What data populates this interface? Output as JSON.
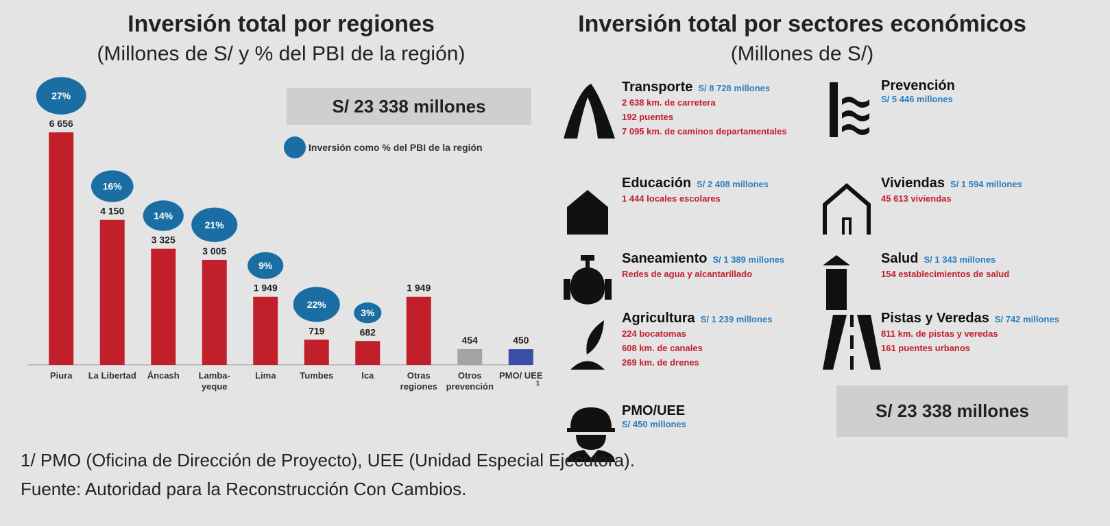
{
  "chart_data": {
    "type": "bar",
    "title": "Inversión total por regiones",
    "subtitle": "(Millones de S/ y % del PBI de la región)",
    "total_label": "S/ 23 338 millones",
    "categories": [
      "Piura",
      "La Libertad",
      "Áncash",
      "Lamba-yeque",
      "Lima",
      "Tumbes",
      "Ica",
      "Otras regiones",
      "Otros prevención",
      "PMO/ UEE"
    ],
    "values": [
      6656,
      4150,
      3325,
      3005,
      1949,
      719,
      682,
      1949,
      454,
      450
    ],
    "value_labels": [
      "6 656",
      "4 150",
      "3 325",
      "3 005",
      "1 949",
      "719",
      "682",
      "1 949",
      "454",
      "450"
    ],
    "colors": [
      "#c1202b",
      "#c1202b",
      "#c1202b",
      "#c1202b",
      "#c1202b",
      "#c1202b",
      "#c1202b",
      "#c1202b",
      "#a3a3a3",
      "#3a4ea6"
    ],
    "pct_values": [
      27,
      16,
      14,
      21,
      9,
      22,
      3,
      null,
      null,
      null
    ],
    "pct_labels": [
      "27%",
      "16%",
      "14%",
      "21%",
      "9%",
      "22%",
      "3%",
      null,
      null,
      null
    ],
    "pct_color": "#1a6ea3",
    "legend": "Inversión como % del PBI de la región",
    "footnote_marker": "1"
  },
  "sectors_panel": {
    "title": "Inversión total por sectores económicos",
    "subtitle": "(Millones de S/)",
    "total_label": "S/ 23 338 millones",
    "sectors": [
      {
        "name": "Transporte",
        "amount": "S/ 8 728 millones",
        "details": [
          "2 638 km. de carretera",
          "192 puentes",
          "7 095 km. de caminos departamentales"
        ]
      },
      {
        "name": "Prevención",
        "amount": "S/ 5 446 millones",
        "details": []
      },
      {
        "name": "Educación",
        "amount": "S/ 2 408 millones",
        "details": [
          "1 444 locales escolares"
        ]
      },
      {
        "name": "Viviendas",
        "amount": "S/ 1 594 millones",
        "details": [
          "45 613 viviendas"
        ]
      },
      {
        "name": "Saneamiento",
        "amount": "S/ 1 389 millones",
        "details": [
          "Redes de agua y alcantarillado"
        ]
      },
      {
        "name": "Salud",
        "amount": "S/ 1 343 millones",
        "details": [
          "154 establecimientos de salud"
        ]
      },
      {
        "name": "Agricultura",
        "amount": "S/ 1 239 millones",
        "details": [
          "224 bocatomas",
          "608 km. de canales",
          "269 km. de drenes"
        ]
      },
      {
        "name": "Pistas y Veredas",
        "amount": "S/ 742 millones",
        "details": [
          "811 km. de pistas y veredas",
          "161 puentes urbanos"
        ]
      },
      {
        "name": "PMO/UEE",
        "amount": "S/ 450 millones",
        "details": []
      }
    ]
  },
  "notes": [
    "1/ PMO (Oficina de Dirección de Proyecto), UEE (Unidad Especial Ejecutora).",
    "Fuente: Autoridad para la Reconstrucción Con Cambios."
  ]
}
